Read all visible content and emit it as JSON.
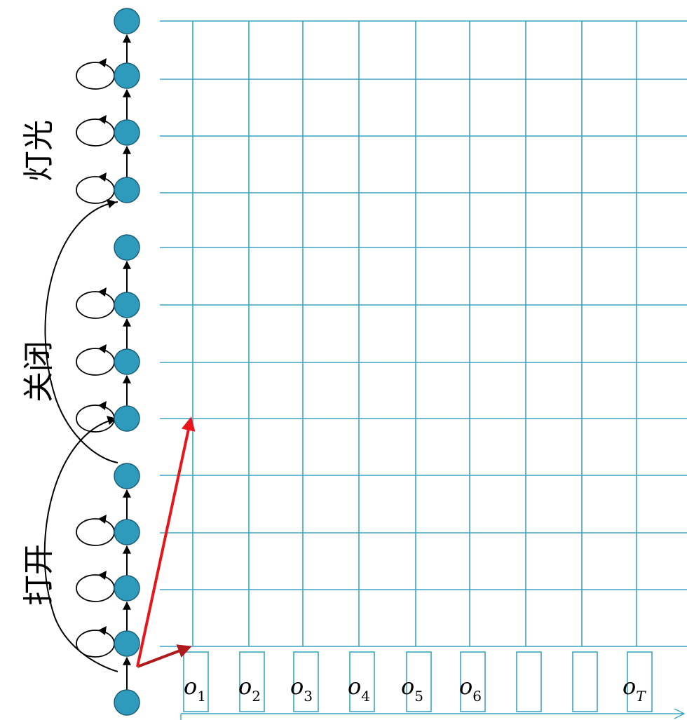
{
  "word_labels": {
    "word_3": "灯光",
    "word_2": "关闭",
    "word_1": "打开"
  },
  "observations": [
    {
      "base": "o",
      "sub": "1"
    },
    {
      "base": "o",
      "sub": "2"
    },
    {
      "base": "o",
      "sub": "3"
    },
    {
      "base": "o",
      "sub": "4"
    },
    {
      "base": "o",
      "sub": "5"
    },
    {
      "base": "o",
      "sub": "6"
    },
    {
      "base": "",
      "sub": ""
    },
    {
      "base": "",
      "sub": ""
    },
    {
      "base": "o",
      "sub": "T"
    }
  ],
  "colors": {
    "grid": "#3aa6c4",
    "state_fill": "#2e9bbd",
    "state_stroke": "#1a5f77",
    "frame_stroke": "#3aa6c4",
    "arrow_black": "#000000",
    "arrow_red": "#e8161b",
    "arrow_dark_red": "#b11a1a"
  }
}
